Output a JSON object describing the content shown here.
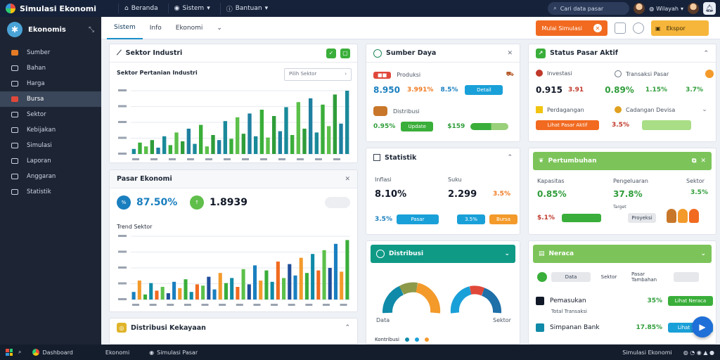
{
  "app": {
    "title": "Simulasi Ekonomi"
  },
  "topnav": [
    {
      "icon": "home-icon",
      "label": "Beranda"
    },
    {
      "icon": "location-icon",
      "label": "Sistem"
    },
    {
      "icon": "info-icon",
      "label": "Bantuan"
    }
  ],
  "topright": {
    "search_placeholder": "Cari data pasar",
    "region_label": "Wilayah"
  },
  "sidebar": {
    "title": "Ekonomis",
    "items": [
      {
        "label": "Sumber",
        "icon": "wallet-icon"
      },
      {
        "label": "Bahan",
        "icon": "box-icon"
      },
      {
        "label": "Harga",
        "icon": "tag-icon"
      },
      {
        "label": "Bursa",
        "icon": "exchange-icon"
      },
      {
        "label": "Sektor",
        "icon": "factory-icon"
      },
      {
        "label": "Kebijakan",
        "icon": "policy-icon"
      },
      {
        "label": "Simulasi",
        "icon": "chart-icon"
      },
      {
        "label": "Laporan",
        "icon": "report-icon"
      },
      {
        "label": "Anggaran",
        "icon": "budget-icon"
      },
      {
        "label": "Statistik",
        "icon": "stats-icon"
      }
    ],
    "active_index": 3
  },
  "subheader": {
    "tabs": [
      "Sistem",
      "Info",
      "Ekonomi"
    ],
    "primary_button": "Mulai Simulasi",
    "secondary_button": "Ekspor"
  },
  "colors": {
    "accent": "#1a8fc9",
    "orange": "#f16a20",
    "green": "#3aae3a",
    "navy": "#16223a"
  },
  "panels": {
    "sales": {
      "title": "Sektor Industri",
      "subtitle": "Sektor Pertanian Industri",
      "select": "Pilih Sektor"
    },
    "summary": {
      "title": "Pasar Ekonomi",
      "value1": "87.50%",
      "value2": "1.8939",
      "chart_title": "Trend Sektor"
    },
    "resources": {
      "title": "Sumber Daya",
      "rows": [
        {
          "label": "Produksi",
          "v1": "8.950",
          "v2": "3.991%",
          "v3": "8.5%",
          "pill": "Detail"
        },
        {
          "label": "Distribusi",
          "v1": "0.95%",
          "pill": "Update",
          "v2": "$159"
        }
      ]
    },
    "market_actions": {
      "title": "Status Pasar Aktif",
      "r1_label": "Investasi",
      "r1_right": "Transaksi Pasar",
      "r1_v1": "0.915",
      "r1_v2": "3.91",
      "r1_v3": "0.89%",
      "r1_v4": "1.15%",
      "r1_v5": "3.7%",
      "r2_label": "Perdagangan",
      "r2_right": "Cadangan Devisa",
      "r2_pill": "Lihat Pasar Aktif",
      "r2_v": "3.5%"
    },
    "stats": {
      "title": "Statistik",
      "c1_label": "Inflasi",
      "c1_val": "8.10%",
      "c2_label": "Suku",
      "c2_val": "2.299",
      "c2_v2": "3.5%",
      "p1": "3.5%",
      "p1b": "Pasar",
      "p2": "3.5%",
      "p3": "Bursa"
    },
    "growth": {
      "title": "Pertumbuhan",
      "l1": "Kapasitas",
      "l2": "Pengeluaran",
      "l3": "Sektor",
      "v1": "0.85%",
      "v2": "37.8%",
      "v3": "3.5%",
      "tiny": "Target",
      "pill": "Proyeksi",
      "small": "$.1%"
    },
    "dist": {
      "title": "Distribusi",
      "gauge_left_label": "Data",
      "gauge_right_label": "Sektor",
      "bottom_label": "Kontribusi"
    },
    "balance": {
      "title": "Neraca",
      "tabs": [
        "Data",
        "Sektor",
        "Pasar Tambahan"
      ],
      "rows": [
        {
          "label": "Pemasukan",
          "sub": "Total Transaksi",
          "v": "35%",
          "pill": "Lihat Neraca"
        },
        {
          "label": "Simpanan Bank",
          "v": "17.85%",
          "pill": "Lihat Data"
        }
      ]
    },
    "wealth": {
      "title": "Distribusi Kekayaan"
    }
  },
  "taskbar": {
    "items": [
      "Dashboard",
      "Ekonomi",
      "Simulasi Pasar"
    ],
    "right": "Simulasi Ekonomi"
  },
  "chart_data": [
    {
      "type": "bar",
      "values": [
        8,
        18,
        12,
        22,
        10,
        28,
        14,
        34,
        20,
        40,
        16,
        46,
        12,
        30,
        22,
        52,
        24,
        58,
        32,
        64,
        28,
        70,
        26,
        60,
        36,
        74,
        30,
        82,
        40,
        88,
        34,
        78,
        44,
        94,
        48,
        100
      ],
      "ylim": [
        0,
        100
      ]
    },
    {
      "type": "bar",
      "values": [
        12,
        30,
        8,
        26,
        14,
        20,
        10,
        28,
        18,
        32,
        12,
        24,
        22,
        36,
        16,
        42,
        26,
        34,
        20,
        48,
        24,
        54,
        30,
        46,
        28,
        60,
        34,
        56,
        38,
        66,
        42,
        72,
        46,
        78,
        50,
        88,
        44,
        94
      ],
      "ylim": [
        0,
        100
      ]
    }
  ]
}
